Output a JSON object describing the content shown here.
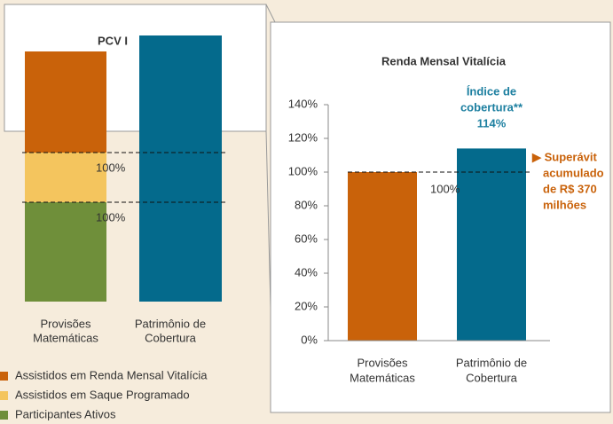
{
  "left_panel": {
    "title": "PCV I",
    "categories": [
      [
        "Provisões",
        "Matemáticas"
      ],
      [
        "Patrimônio de",
        "Cobertura"
      ]
    ],
    "level_labels": [
      "100%",
      "100%"
    ],
    "legend": [
      {
        "name": "Assistidos em Renda Mensal Vitalícia",
        "color": "#c9620a"
      },
      {
        "name": "Assistidos em Saque Programado",
        "color": "#f4c55e"
      },
      {
        "name": "Participantes Ativos",
        "color": "#6f8f3a"
      }
    ],
    "bar_color": "#046a8c"
  },
  "chart_data": {
    "type": "bar",
    "title": "Renda Mensal Vitalícia",
    "categories": [
      [
        "Provisões",
        "Matemáticas"
      ],
      [
        "Patrimônio de",
        "Cobertura"
      ]
    ],
    "values": [
      100,
      114
    ],
    "colors": [
      "#c9620a",
      "#046a8c"
    ],
    "ylim": [
      0,
      140
    ],
    "yticks": [
      {
        "value": 0,
        "label": "0%"
      },
      {
        "value": 20,
        "label": "20%"
      },
      {
        "value": 40,
        "label": "40%"
      },
      {
        "value": 60,
        "label": "60%"
      },
      {
        "value": 80,
        "label": "80%"
      },
      {
        "value": 100,
        "label": "100%"
      },
      {
        "value": 120,
        "label": "120%"
      },
      {
        "value": 140,
        "label": "140%"
      }
    ],
    "reference_line": {
      "value": 100,
      "label": "100%"
    },
    "coverage_annotation": [
      "Índice de",
      "cobertura**",
      "114%"
    ],
    "surplus_annotation": [
      "▶ Superávit",
      "acumulado",
      "de R$ 370",
      "milhões"
    ]
  }
}
